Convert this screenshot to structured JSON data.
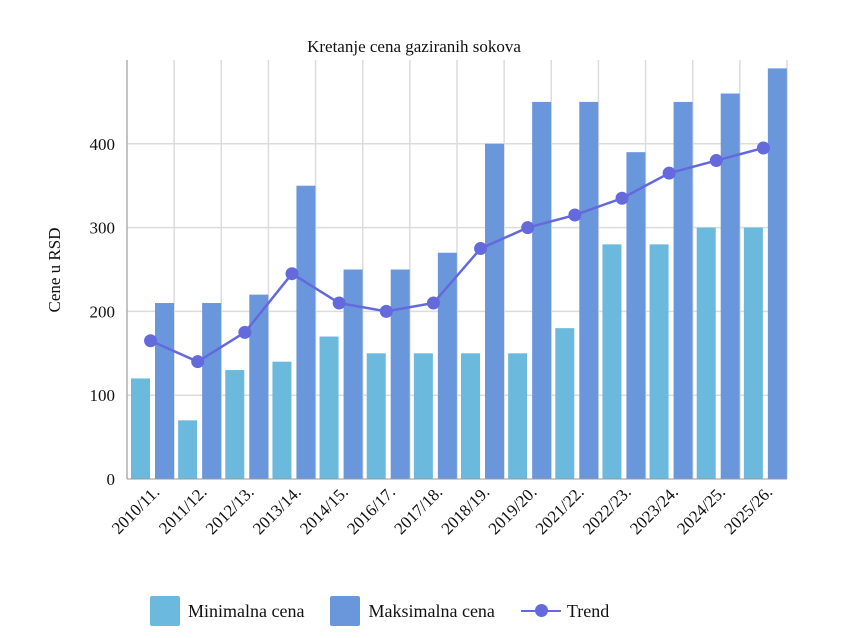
{
  "chart_data": {
    "type": "bar",
    "title": "Kretanje cena gaziranih sokova",
    "xlabel": "",
    "ylabel": "Cene u RSD",
    "ylim": [
      0,
      500
    ],
    "yticks": [
      0,
      100,
      200,
      300,
      400
    ],
    "categories": [
      "2010/11.",
      "2011/12.",
      "2012/13.",
      "2013/14.",
      "2014/15.",
      "2016/17.",
      "2017/18.",
      "2018/19.",
      "2019/20.",
      "2021/22.",
      "2022/23.",
      "2023/24.",
      "2024/25.",
      "2025/26."
    ],
    "series": [
      {
        "name": "Minimalna cena",
        "kind": "bar",
        "color": "#6bb9dd",
        "values": [
          120,
          70,
          130,
          140,
          170,
          150,
          150,
          150,
          150,
          180,
          280,
          280,
          300,
          300
        ]
      },
      {
        "name": "Maksimalna cena",
        "kind": "bar",
        "color": "#6a96dc",
        "values": [
          210,
          210,
          220,
          350,
          250,
          250,
          270,
          400,
          450,
          450,
          390,
          450,
          460,
          490
        ]
      },
      {
        "name": "Trend",
        "kind": "line",
        "color": "#6469db",
        "values": [
          165,
          140,
          175,
          245,
          210,
          200,
          210,
          275,
          300,
          315,
          335,
          365,
          380,
          395
        ]
      }
    ],
    "grid": true,
    "legend_position": "bottom"
  }
}
